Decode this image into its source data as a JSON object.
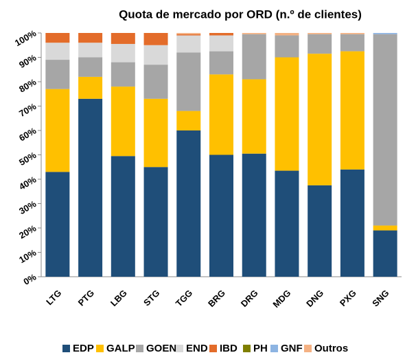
{
  "chart_data": {
    "type": "stacked_bar",
    "title": "Quota de mercado por ORD (n.º de clientes)",
    "categories": [
      "LTG",
      "PTG",
      "LBG",
      "STG",
      "TGG",
      "BRG",
      "DRG",
      "MDG",
      "DNG",
      "PXG",
      "SNG"
    ],
    "series": [
      {
        "name": "EDP",
        "color": "#1f4e79",
        "values": [
          43,
          73,
          49.5,
          45,
          60,
          50,
          50.5,
          43.5,
          37.5,
          44,
          19
        ]
      },
      {
        "name": "GALP",
        "color": "#ffc000",
        "values": [
          34,
          9,
          28.5,
          28,
          8,
          33,
          30.5,
          46.5,
          54,
          48.5,
          2
        ]
      },
      {
        "name": "GOEN",
        "color": "#a6a6a6",
        "values": [
          12,
          8,
          10,
          14,
          24,
          9.5,
          18.5,
          9,
          8,
          7,
          78.5
        ]
      },
      {
        "name": "END",
        "color": "#d9d9d9",
        "values": [
          7,
          6,
          7.5,
          8,
          7,
          6.5,
          0,
          0,
          0,
          0,
          0
        ]
      },
      {
        "name": "IBD",
        "color": "#e36c2a",
        "values": [
          4,
          4,
          4.5,
          5,
          0.5,
          1,
          0,
          0,
          0,
          0,
          0
        ]
      },
      {
        "name": "PH",
        "color": "#7f7f00",
        "values": [
          0,
          0,
          0,
          0,
          0,
          0,
          0,
          0,
          0,
          0,
          0
        ]
      },
      {
        "name": "GNF",
        "color": "#8db4e2",
        "values": [
          0,
          0,
          0,
          0,
          0,
          0,
          0,
          0,
          0,
          0,
          0.5
        ]
      },
      {
        "name": "Outros",
        "color": "#f4b183",
        "values": [
          0,
          0,
          0,
          0,
          0.5,
          0,
          0.5,
          1,
          0.5,
          0.5,
          0
        ]
      }
    ],
    "ylim": [
      0,
      100
    ],
    "yticks": [
      {
        "value": 0,
        "label": "0%"
      },
      {
        "value": 10,
        "label": "10%"
      },
      {
        "value": 20,
        "label": "20%"
      },
      {
        "value": 30,
        "label": "30%"
      },
      {
        "value": 40,
        "label": "40%"
      },
      {
        "value": 50,
        "label": "50%"
      },
      {
        "value": 60,
        "label": "60%"
      },
      {
        "value": 70,
        "label": "70%"
      },
      {
        "value": 80,
        "label": "80%"
      },
      {
        "value": 90,
        "label": "90%"
      },
      {
        "value": 100,
        "label": "100%"
      }
    ],
    "legend": "bottom"
  }
}
